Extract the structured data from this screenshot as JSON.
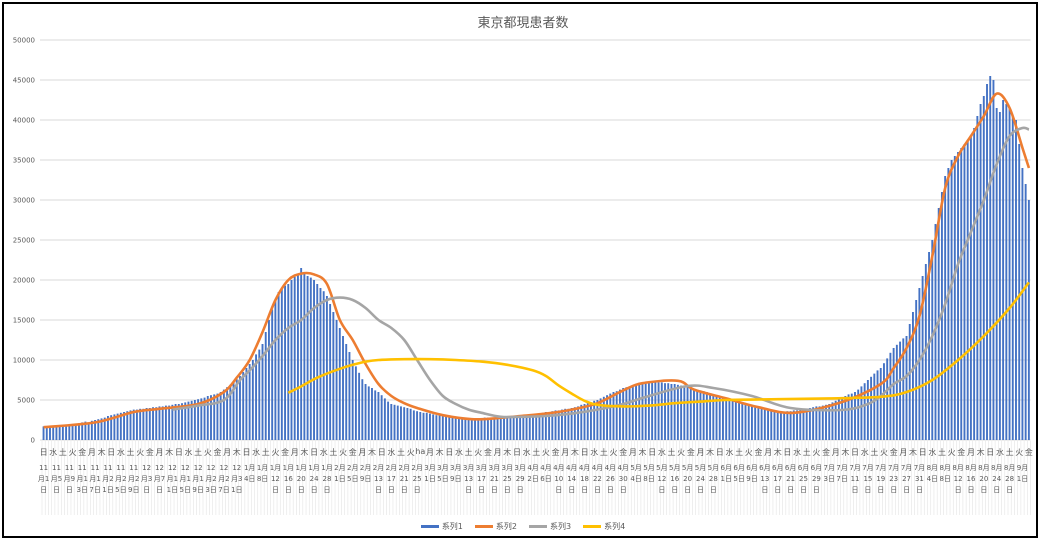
{
  "chart_data": {
    "type": "bar+line",
    "title": "東京都現患者数",
    "ylim": [
      0,
      50000
    ],
    "y_ticks": [
      "0",
      "5000",
      "10000",
      "15000",
      "20000",
      "25000",
      "30000",
      "35000",
      "40000",
      "45000",
      "50000"
    ],
    "grid": true,
    "legend_position": "bottom",
    "x_tick_labels": [
      "11月1日",
      "11月5日",
      "11月9日",
      "11月13日",
      "11月17日",
      "11月21日",
      "11月25日",
      "11月29日",
      "12月3日",
      "12月7日",
      "12月11日",
      "12月15日",
      "12月19日",
      "12月23日",
      "12月27日",
      "12月31日",
      "1月4日",
      "1月8日",
      "1月12日",
      "1月16日",
      "1月20日",
      "1月24日",
      "1月28日",
      "2月1日",
      "2月5日",
      "2月9日",
      "2月13日",
      "2月17日",
      "2月21日",
      "2月25日",
      "3月1日",
      "3月5日",
      "3月9日",
      "3月13日",
      "3月17日",
      "3月21日",
      "3月25日",
      "3月29日",
      "4月2日",
      "4月6日",
      "4月10日",
      "4月14日",
      "4月18日",
      "4月22日",
      "4月26日",
      "4月30日",
      "5月4日",
      "5月8日",
      "5月12日",
      "5月16日",
      "5月20日",
      "5月24日",
      "5月28日",
      "6月1日",
      "6月5日",
      "6月9日",
      "6月13日",
      "6月17日",
      "6月21日",
      "6月25日",
      "6月29日",
      "7月3日",
      "7月7日",
      "7月11日",
      "7月15日",
      "7月19日",
      "7月23日",
      "7月27日",
      "7月31日",
      "8月4日",
      "8月8日",
      "8月12日",
      "8月16日",
      "8月20日",
      "8月24日",
      "8月28日",
      "9月1日"
    ],
    "weekday_labels": [
      "日",
      "水",
      "土",
      "火",
      "金",
      "月",
      "木",
      "日",
      "水",
      "土",
      "火",
      "金",
      "月",
      "木",
      "日",
      "水",
      "土",
      "火",
      "金",
      "月",
      "木",
      "日",
      "水",
      "土",
      "火",
      "金",
      "月",
      "木",
      "日",
      "水",
      "土",
      "火",
      "金",
      "月",
      "木",
      "日",
      "水",
      "土",
      "火",
      "ha",
      "月",
      "木",
      "日",
      "水",
      "土",
      "火",
      "金",
      "月",
      "木",
      "日",
      "水",
      "土",
      "火",
      "金",
      "月",
      "木",
      "日",
      "水",
      "土",
      "火",
      "金",
      "月",
      "木",
      "日",
      "水",
      "土",
      "火",
      "金",
      "月",
      "木",
      "日",
      "水",
      "土",
      "火",
      "金",
      "月",
      "木",
      "日",
      "水",
      "土",
      "火",
      "金",
      "月",
      "木",
      "日",
      "水",
      "土",
      "火",
      "金",
      "月",
      "木",
      "日",
      "水",
      "土",
      "火",
      "金",
      "月",
      "木",
      "日",
      "水",
      "土",
      "火",
      "金"
    ],
    "series": [
      {
        "name": "系列1",
        "kind": "bar",
        "color": "#4472c4",
        "values": [
          1700,
          1700,
          1800,
          1700,
          1800,
          1800,
          1900,
          1800,
          1900,
          2000,
          2000,
          2100,
          2200,
          2300,
          2200,
          2400,
          2500,
          2600,
          2700,
          2800,
          3000,
          3100,
          3200,
          3300,
          3400,
          3500,
          3600,
          3700,
          3800,
          3800,
          3900,
          3900,
          4000,
          4000,
          4100,
          4100,
          4200,
          4200,
          4300,
          4300,
          4400,
          4500,
          4500,
          4600,
          4700,
          4800,
          4900,
          5000,
          5100,
          5200,
          5300,
          5500,
          5600,
          5700,
          5800,
          6000,
          6300,
          6600,
          6900,
          7200,
          7600,
          8000,
          8500,
          9000,
          9500,
          10000,
          10700,
          11300,
          12000,
          13500,
          15000,
          16300,
          17500,
          18500,
          19000,
          19300,
          19500,
          20000,
          20400,
          20800,
          21500,
          21000,
          20500,
          20300,
          20000,
          19500,
          19000,
          18600,
          18000,
          17000,
          16000,
          15000,
          14000,
          13000,
          12000,
          11000,
          10000,
          9200,
          8400,
          7600,
          7000,
          6700,
          6500,
          6200,
          6000,
          5600,
          5200,
          4800,
          4500,
          4400,
          4300,
          4200,
          4100,
          4000,
          3900,
          3700,
          3600,
          3500,
          3400,
          3400,
          3300,
          3200,
          3100,
          3100,
          3000,
          3000,
          2900,
          2900,
          2800,
          2800,
          2800,
          2700,
          2700,
          2700,
          2700,
          2700,
          2700,
          2800,
          2800,
          2800,
          2800,
          2800,
          2900,
          2900,
          2900,
          2900,
          3000,
          3000,
          3000,
          3100,
          3100,
          3200,
          3200,
          3300,
          3300,
          3400,
          3500,
          3500,
          3600,
          3700,
          3700,
          3800,
          3900,
          3900,
          4000,
          4100,
          4200,
          4400,
          4500,
          4600,
          4700,
          4900,
          5000,
          5200,
          5400,
          5600,
          5800,
          6000,
          6100,
          6300,
          6500,
          6600,
          6700,
          6800,
          6900,
          7000,
          7100,
          7200,
          7300,
          7300,
          7300,
          7200,
          7200,
          7100,
          7100,
          7000,
          7000,
          6900,
          6800,
          6700,
          6600,
          6500,
          6400,
          6300,
          6200,
          6100,
          6000,
          5800,
          5700,
          5600,
          5500,
          5300,
          5200,
          5100,
          5000,
          4900,
          4700,
          4600,
          4500,
          4300,
          4200,
          4100,
          4000,
          3900,
          3800,
          3700,
          3600,
          3600,
          3500,
          3500,
          3500,
          3600,
          3600,
          3700,
          3700,
          3800,
          3800,
          3900,
          4000,
          4100,
          4200,
          4200,
          4300,
          4400,
          4500,
          4700,
          4900,
          5100,
          5300,
          5500,
          5700,
          5800,
          6000,
          6300,
          6700,
          7100,
          7500,
          7900,
          8300,
          8700,
          9000,
          9600,
          10200,
          10900,
          11500,
          11900,
          12300,
          12700,
          13000,
          14500,
          16000,
          17500,
          19000,
          20500,
          22000,
          23500,
          25000,
          27000,
          29000,
          31000,
          33000,
          34000,
          35000,
          35500,
          36000,
          36500,
          37000,
          37500,
          38000,
          39000,
          40500,
          42000,
          43000,
          44500,
          45500,
          45000,
          41500,
          41000,
          42500,
          42000,
          41500,
          40500,
          40000,
          37000,
          34000,
          32000,
          30000
        ]
      },
      {
        "name": "系列2",
        "kind": "line",
        "color": "#ed7d31",
        "points": [
          [
            "11/1",
            1600
          ],
          [
            "11/17",
            2200
          ],
          [
            "11/29",
            3500
          ],
          [
            "12/7",
            3900
          ],
          [
            "12/19",
            4500
          ],
          [
            "12/27",
            6000
          ],
          [
            "12/31",
            7800
          ],
          [
            "1/4",
            10000
          ],
          [
            "1/8",
            13500
          ],
          [
            "1/12",
            17500
          ],
          [
            "1/16",
            20000
          ],
          [
            "1/20",
            20800
          ],
          [
            "1/24",
            20700
          ],
          [
            "1/28",
            19500
          ],
          [
            "2/1",
            15000
          ],
          [
            "2/5",
            12500
          ],
          [
            "2/9",
            9500
          ],
          [
            "2/13",
            7000
          ],
          [
            "2/17",
            5500
          ],
          [
            "2/21",
            4600
          ],
          [
            "2/25",
            4000
          ],
          [
            "3/5",
            3100
          ],
          [
            "3/14",
            2600
          ],
          [
            "3/21",
            2700
          ],
          [
            "3/29",
            3000
          ],
          [
            "4/6",
            3300
          ],
          [
            "4/14",
            3800
          ],
          [
            "4/22",
            4600
          ],
          [
            "4/30",
            6200
          ],
          [
            "5/6",
            7100
          ],
          [
            "5/17",
            7400
          ],
          [
            "5/22",
            6300
          ],
          [
            "6/1",
            5200
          ],
          [
            "6/11",
            4100
          ],
          [
            "6/22",
            3400
          ],
          [
            "7/7",
            4750
          ],
          [
            "7/19",
            7000
          ],
          [
            "7/23",
            9000
          ],
          [
            "7/27",
            11500
          ],
          [
            "7/31",
            15500
          ],
          [
            "8/4",
            23000
          ],
          [
            "8/8",
            31500
          ],
          [
            "8/12",
            35500
          ],
          [
            "8/16",
            38000
          ],
          [
            "8/20",
            40500
          ],
          [
            "8/24",
            43300
          ],
          [
            "8/28",
            41500
          ],
          [
            "9/1",
            36500
          ],
          [
            "9/3",
            34000
          ]
        ]
      },
      {
        "name": "系列3",
        "kind": "line",
        "color": "#a5a5a5",
        "points": [
          [
            "12/11",
            3800
          ],
          [
            "12/19",
            4300
          ],
          [
            "12/27",
            5000
          ],
          [
            "1/1",
            7500
          ],
          [
            "1/4",
            8700
          ],
          [
            "1/8",
            10500
          ],
          [
            "1/12",
            12500
          ],
          [
            "1/16",
            14000
          ],
          [
            "1/20",
            15000
          ],
          [
            "1/24",
            16500
          ],
          [
            "1/28",
            17500
          ],
          [
            "2/1",
            17800
          ],
          [
            "2/5",
            17500
          ],
          [
            "2/9",
            16500
          ],
          [
            "2/13",
            15000
          ],
          [
            "2/17",
            14000
          ],
          [
            "2/21",
            12500
          ],
          [
            "2/25",
            10000
          ],
          [
            "3/1",
            7500
          ],
          [
            "3/5",
            5500
          ],
          [
            "3/9",
            4500
          ],
          [
            "3/13",
            3800
          ],
          [
            "3/17",
            3400
          ],
          [
            "3/23",
            2900
          ],
          [
            "3/29",
            2900
          ],
          [
            "4/6",
            3000
          ],
          [
            "4/14",
            3300
          ],
          [
            "4/22",
            3800
          ],
          [
            "4/30",
            4500
          ],
          [
            "5/8",
            5500
          ],
          [
            "5/20",
            6750
          ],
          [
            "5/28",
            6500
          ],
          [
            "6/9",
            5500
          ],
          [
            "6/21",
            4000
          ],
          [
            "7/7",
            3750
          ],
          [
            "7/15",
            4500
          ],
          [
            "7/19",
            5500
          ],
          [
            "7/23",
            7000
          ],
          [
            "7/27",
            8000
          ],
          [
            "7/31",
            10000
          ],
          [
            "8/4",
            13000
          ],
          [
            "8/8",
            17000
          ],
          [
            "8/12",
            22000
          ],
          [
            "8/16",
            26000
          ],
          [
            "8/20",
            30000
          ],
          [
            "8/24",
            34500
          ],
          [
            "8/28",
            38000
          ],
          [
            "9/1",
            39000
          ],
          [
            "9/3",
            38800
          ]
        ]
      },
      {
        "name": "系列4",
        "kind": "line",
        "color": "#ffc000",
        "points": [
          [
            "1/16",
            5900
          ],
          [
            "1/20",
            6700
          ],
          [
            "1/24",
            7600
          ],
          [
            "1/28",
            8300
          ],
          [
            "2/1",
            8900
          ],
          [
            "2/5",
            9400
          ],
          [
            "2/9",
            9800
          ],
          [
            "2/13",
            10000
          ],
          [
            "2/21",
            10100
          ],
          [
            "3/1",
            10100
          ],
          [
            "3/9",
            10000
          ],
          [
            "3/17",
            9800
          ],
          [
            "3/25",
            9400
          ],
          [
            "4/2",
            8700
          ],
          [
            "4/6",
            8000
          ],
          [
            "4/10",
            6800
          ],
          [
            "4/14",
            5800
          ],
          [
            "4/18",
            4900
          ],
          [
            "4/22",
            4400
          ],
          [
            "4/30",
            4200
          ],
          [
            "5/8",
            4300
          ],
          [
            "5/16",
            4600
          ],
          [
            "5/24",
            4800
          ],
          [
            "6/1",
            5000
          ],
          [
            "6/17",
            5100
          ],
          [
            "7/3",
            5200
          ],
          [
            "7/19",
            5400
          ],
          [
            "7/27",
            6000
          ],
          [
            "8/4",
            7500
          ],
          [
            "8/12",
            10000
          ],
          [
            "8/20",
            13000
          ],
          [
            "8/28",
            16500
          ],
          [
            "9/3",
            19700
          ]
        ]
      }
    ]
  }
}
